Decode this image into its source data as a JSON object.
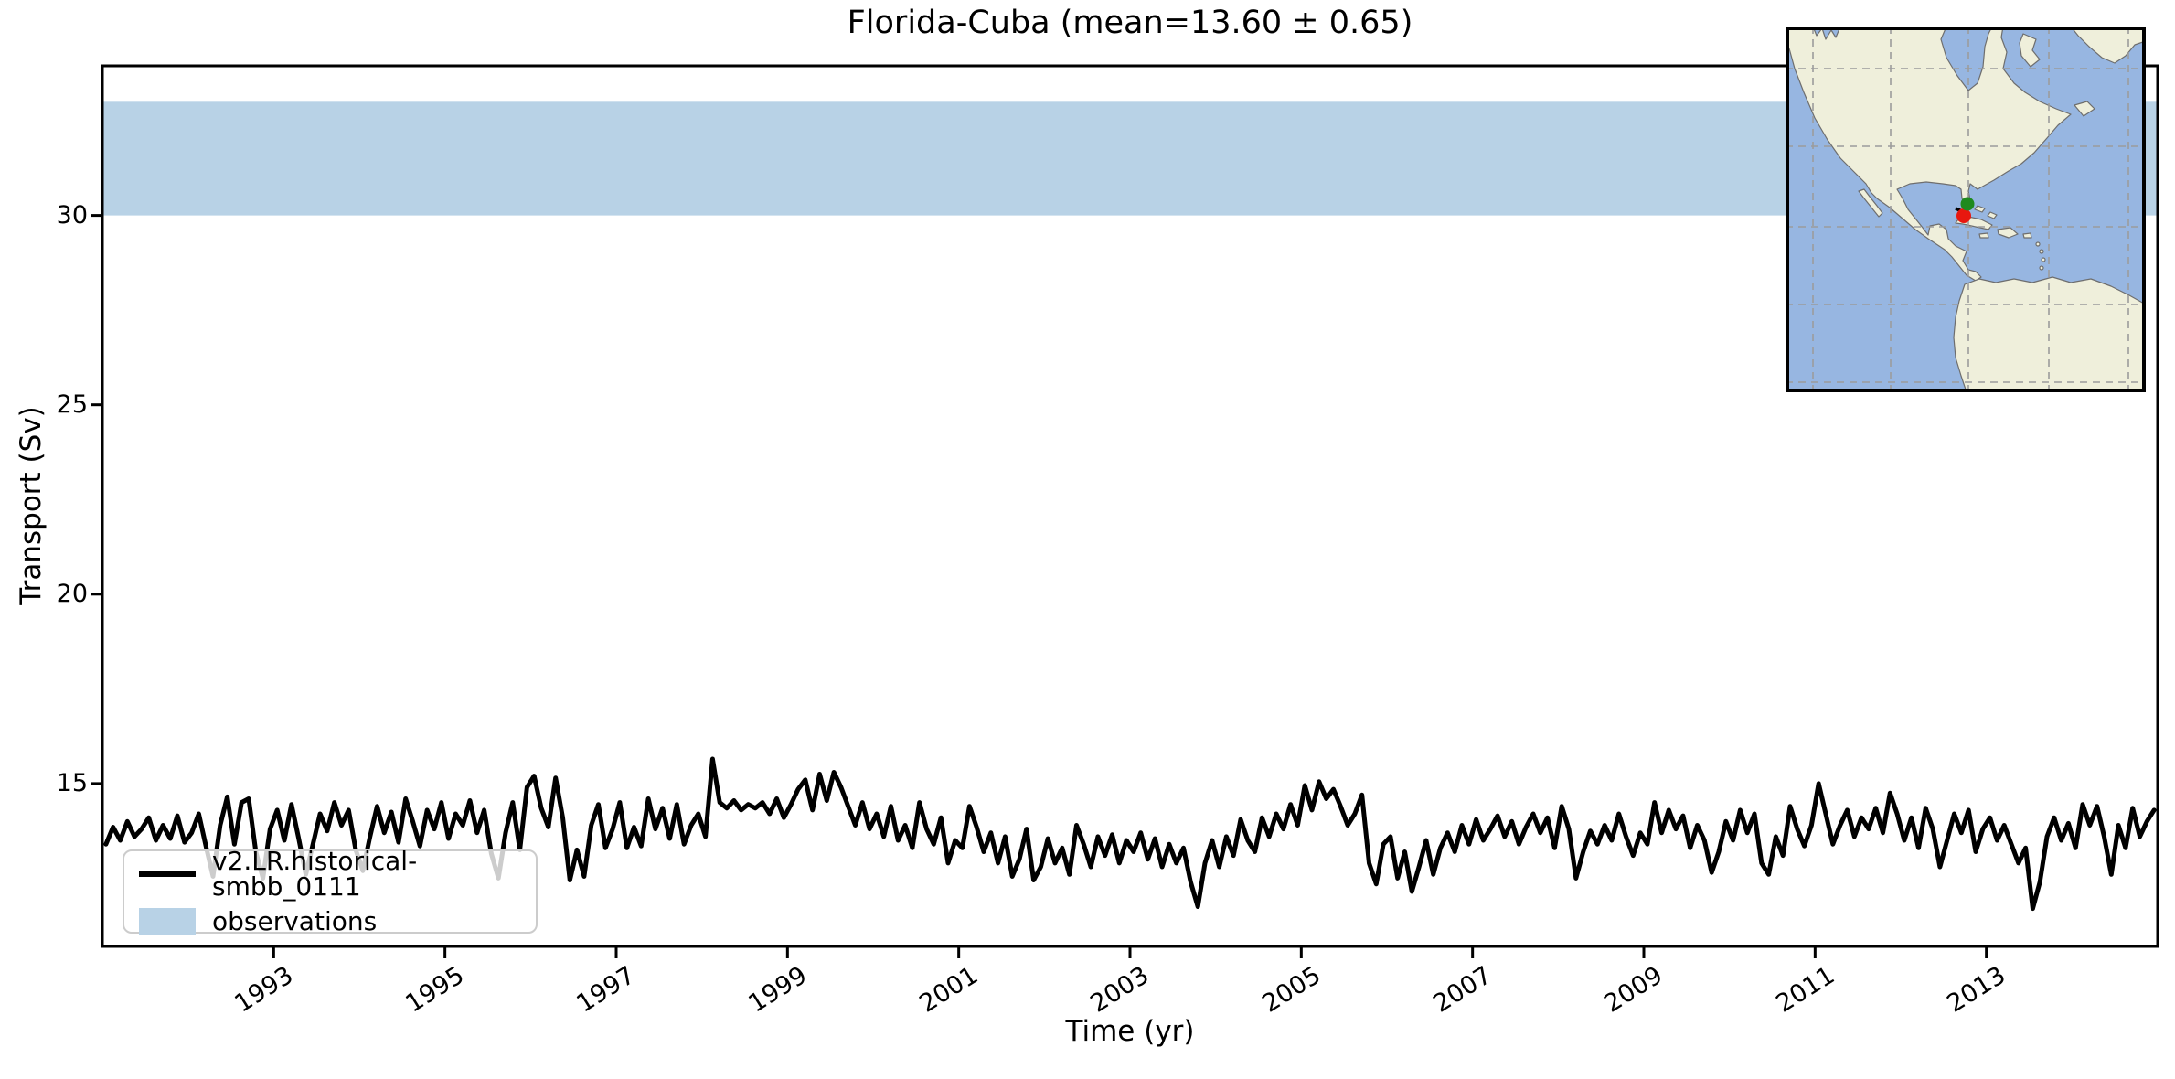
{
  "title": "Florida-Cuba (mean=13.60 ± 0.65)",
  "chart_data": {
    "type": "line",
    "title": "Florida-Cuba (mean=13.60 ± 0.65)",
    "xlabel": "Time (yr)",
    "ylabel": "Transport (Sv)",
    "xlim": [
      1991.0,
      2015.0
    ],
    "ylim": [
      10.7,
      33.95
    ],
    "x_ticks": [
      1993,
      1995,
      1997,
      1999,
      2001,
      2003,
      2005,
      2007,
      2009,
      2011,
      2013
    ],
    "y_ticks": [
      15,
      20,
      25,
      30
    ],
    "grid": false,
    "legend_position": "lower left",
    "observations_band": {
      "label": "observations",
      "min": 30.0,
      "max": 33.0,
      "color": "#b8d2e6"
    },
    "series": [
      {
        "name": "v2.LR.historical-smbb_0111",
        "color": "#000000",
        "mean": 13.6,
        "std": 0.65,
        "start_year": 1991,
        "interval_months": 1,
        "values": [
          13.4,
          13.85,
          13.5,
          14.0,
          13.6,
          13.8,
          14.1,
          13.5,
          13.9,
          13.55,
          14.15,
          13.45,
          13.7,
          14.2,
          13.35,
          12.55,
          13.9,
          14.65,
          13.4,
          14.5,
          14.6,
          13.2,
          12.5,
          13.8,
          14.3,
          13.5,
          14.45,
          13.55,
          12.6,
          13.4,
          14.2,
          13.75,
          14.5,
          13.9,
          14.3,
          13.25,
          12.7,
          13.6,
          14.4,
          13.7,
          14.25,
          13.45,
          14.6,
          14.0,
          13.35,
          14.3,
          13.8,
          14.5,
          13.55,
          14.2,
          13.9,
          14.55,
          13.7,
          14.3,
          13.15,
          12.5,
          13.7,
          14.5,
          13.25,
          14.9,
          15.2,
          14.35,
          13.85,
          15.15,
          14.1,
          12.45,
          13.25,
          12.55,
          13.9,
          14.45,
          13.3,
          13.8,
          14.5,
          13.3,
          13.85,
          13.35,
          14.6,
          13.8,
          14.35,
          13.55,
          14.45,
          13.4,
          13.9,
          14.2,
          13.6,
          15.65,
          14.5,
          14.35,
          14.55,
          14.3,
          14.45,
          14.35,
          14.5,
          14.2,
          14.6,
          14.1,
          14.45,
          14.85,
          15.1,
          14.3,
          15.25,
          14.55,
          15.3,
          14.9,
          14.4,
          13.9,
          14.5,
          13.8,
          14.2,
          13.6,
          14.4,
          13.5,
          13.9,
          13.3,
          14.5,
          13.8,
          13.4,
          14.1,
          12.9,
          13.5,
          13.3,
          14.4,
          13.85,
          13.2,
          13.7,
          12.9,
          13.6,
          12.55,
          13.0,
          13.8,
          12.45,
          12.8,
          13.55,
          12.9,
          13.3,
          12.6,
          13.9,
          13.4,
          12.8,
          13.6,
          13.1,
          13.65,
          12.9,
          13.5,
          13.2,
          13.7,
          13.0,
          13.55,
          12.8,
          13.4,
          12.9,
          13.3,
          12.4,
          11.75,
          12.9,
          13.5,
          12.8,
          13.6,
          13.1,
          14.05,
          13.5,
          13.2,
          14.1,
          13.6,
          14.2,
          13.8,
          14.45,
          13.9,
          14.95,
          14.3,
          15.05,
          14.6,
          14.85,
          14.4,
          13.9,
          14.2,
          14.7,
          12.9,
          12.35,
          13.4,
          13.6,
          12.5,
          13.2,
          12.15,
          12.8,
          13.5,
          12.6,
          13.3,
          13.7,
          13.2,
          13.9,
          13.4,
          14.05,
          13.5,
          13.8,
          14.15,
          13.6,
          14.0,
          13.4,
          13.85,
          14.2,
          13.7,
          14.1,
          13.3,
          14.4,
          13.8,
          12.5,
          13.2,
          13.75,
          13.4,
          13.9,
          13.5,
          14.2,
          13.6,
          13.1,
          13.7,
          13.4,
          14.5,
          13.7,
          14.3,
          13.8,
          14.15,
          13.3,
          13.9,
          13.5,
          12.65,
          13.2,
          14.0,
          13.5,
          14.3,
          13.7,
          14.2,
          12.9,
          12.6,
          13.6,
          13.1,
          14.4,
          13.8,
          13.35,
          13.9,
          15.0,
          14.2,
          13.4,
          13.9,
          14.3,
          13.6,
          14.1,
          13.8,
          14.35,
          13.7,
          14.75,
          14.2,
          13.5,
          14.1,
          13.3,
          14.35,
          13.8,
          12.8,
          13.5,
          14.2,
          13.7,
          14.3,
          13.2,
          13.8,
          14.1,
          13.5,
          13.9,
          13.4,
          12.9,
          13.3,
          11.7,
          12.4,
          13.6,
          14.1,
          13.5,
          13.95,
          13.3,
          14.45,
          13.9,
          14.4,
          13.6,
          12.6,
          13.9,
          13.3,
          14.35,
          13.6,
          14.0,
          14.3
        ]
      }
    ],
    "legend": {
      "model_label": "v2.LR.historical-smbb_0111",
      "observations_label": "observations"
    }
  },
  "inset_map": {
    "ocean_color": "#97b6e1",
    "land_color": "#efefdb",
    "grid_color": "#9c9c9c",
    "north_marker_color": "#1e8a1e",
    "south_marker_color": "#e8170f"
  }
}
